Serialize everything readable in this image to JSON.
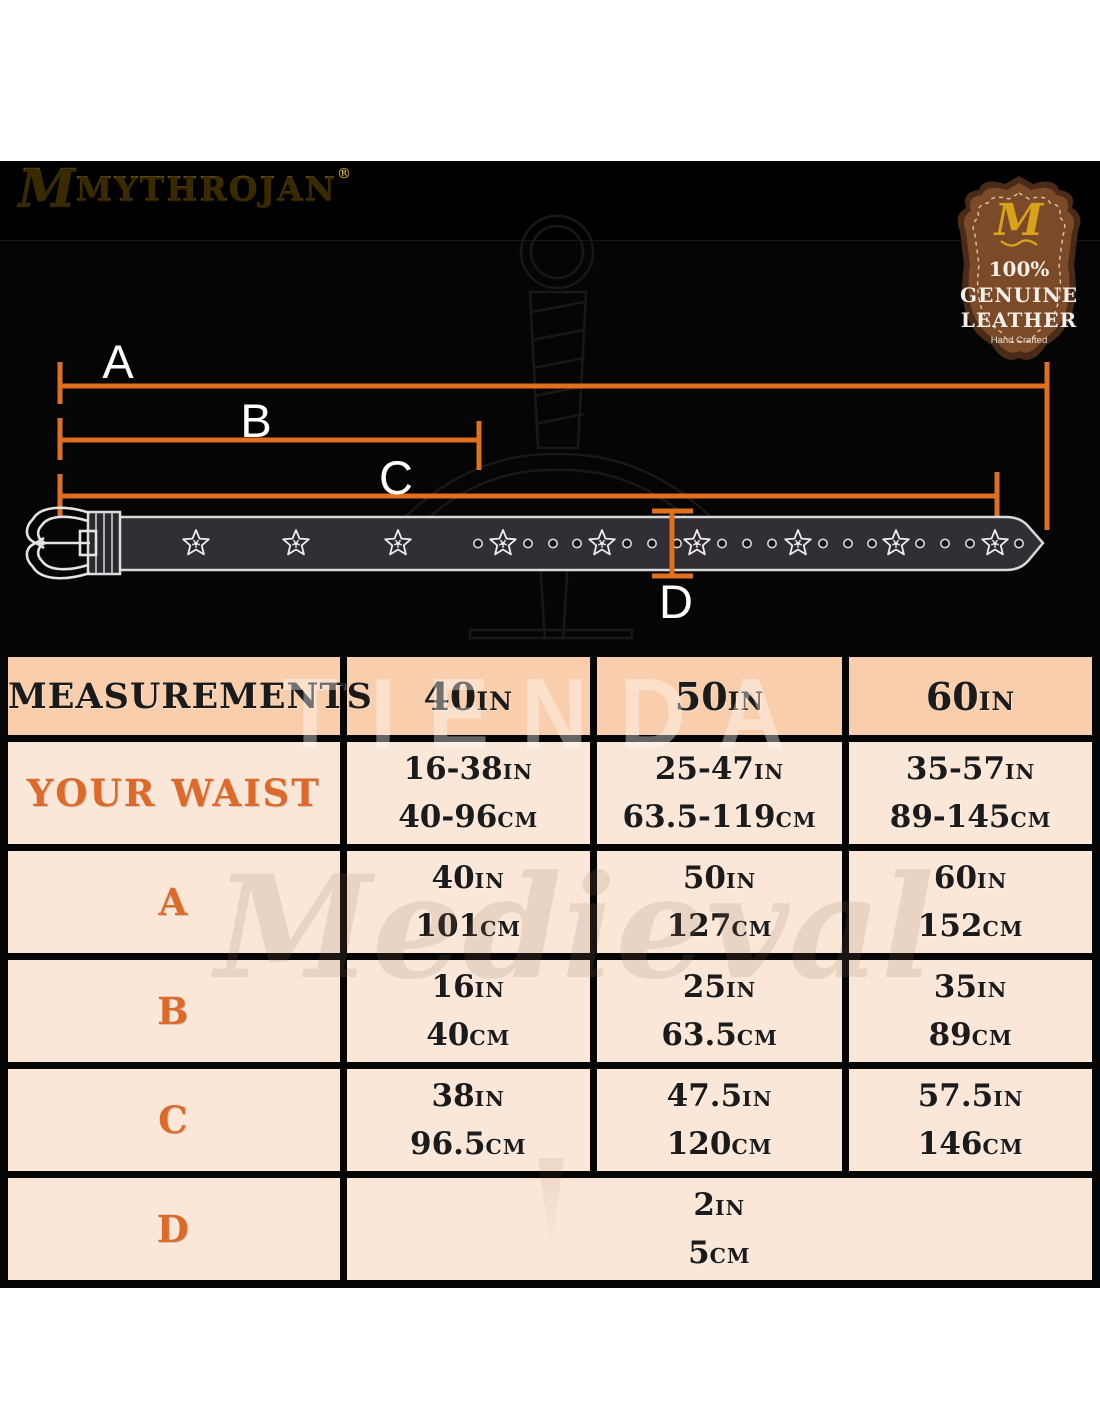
{
  "brand": {
    "logo_text": "MYTHROJAN",
    "registered_mark": "®"
  },
  "badge": {
    "monogram": "M",
    "line1": "100%",
    "line2": "GENUINE",
    "line3": "LEATHER",
    "line4": "Hand Crafted"
  },
  "diagram": {
    "labels": {
      "a": "A",
      "b": "B",
      "c": "C",
      "d": "D"
    }
  },
  "watermark": {
    "line1": "TIENDA",
    "line2": "Medieval"
  },
  "units": {
    "inches": "IN",
    "centimeters": "CM"
  },
  "table": {
    "header": {
      "col1": "MEASUREMENTS",
      "sizes": [
        {
          "value": "40",
          "unit": "IN"
        },
        {
          "value": "50",
          "unit": "IN"
        },
        {
          "value": "60",
          "unit": "IN"
        }
      ]
    },
    "rows": [
      {
        "label": "YOUR WAIST",
        "cells": [
          {
            "in": "16-38",
            "cm": "40-96"
          },
          {
            "in": "25-47",
            "cm": "63.5-119"
          },
          {
            "in": "35-57",
            "cm": "89-145"
          }
        ]
      },
      {
        "label": "A",
        "cells": [
          {
            "in": "40",
            "cm": "101"
          },
          {
            "in": "50",
            "cm": "127"
          },
          {
            "in": "60",
            "cm": "152"
          }
        ]
      },
      {
        "label": "B",
        "cells": [
          {
            "in": "16",
            "cm": "40"
          },
          {
            "in": "25",
            "cm": "63.5"
          },
          {
            "in": "35",
            "cm": "89"
          }
        ]
      },
      {
        "label": "C",
        "cells": [
          {
            "in": "38",
            "cm": "96.5"
          },
          {
            "in": "47.5",
            "cm": "120"
          },
          {
            "in": "57.5",
            "cm": "146"
          }
        ]
      },
      {
        "label": "D",
        "merged": true,
        "cells": [
          {
            "in": "2",
            "cm": "5"
          }
        ]
      }
    ]
  },
  "colors": {
    "accent_orange_lines": "#E0701E",
    "accent_orange_text": "#DB6A2B",
    "table_header_bg": "#F8CEAC",
    "table_row_bg": "#FAE7D8",
    "logo_gold": "#DCA522",
    "badge_brown": "#7B4A28",
    "badge_border": "#4A2B17",
    "background_black": "#050505"
  }
}
